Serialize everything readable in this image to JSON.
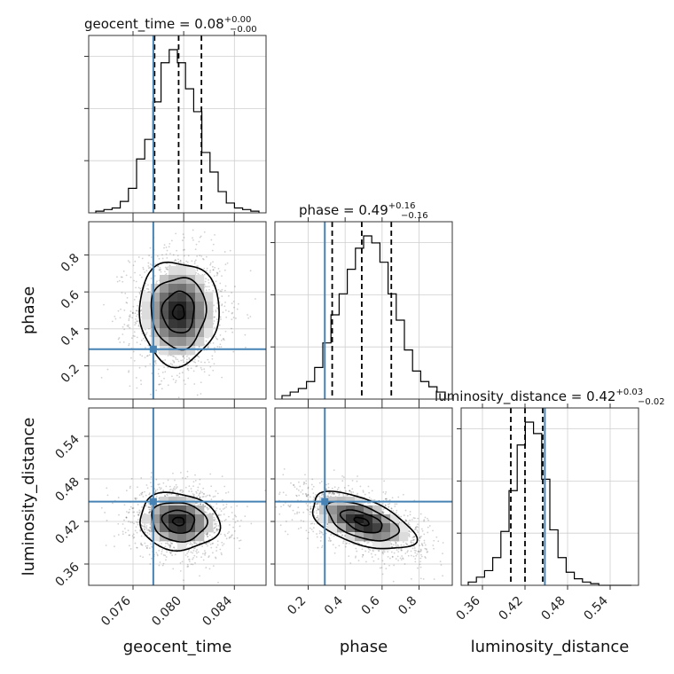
{
  "chart_data": {
    "type": "corner",
    "parameters": [
      {
        "name": "geocent_time",
        "range": [
          0.0725,
          0.0865
        ],
        "ticks": [
          "0.076",
          "0.080",
          "0.084"
        ],
        "tick_values": [
          0.076,
          0.08,
          0.084
        ],
        "truth": 0.0776,
        "median": 0.0796,
        "q_low": 0.0777,
        "q_high": 0.0814,
        "title_value": "0.08",
        "title_plus": "+0.00",
        "title_minus": "−0.00"
      },
      {
        "name": "phase",
        "range": [
          0.02,
          0.98
        ],
        "ticks": [
          "0.2",
          "0.4",
          "0.6",
          "0.8"
        ],
        "tick_values": [
          0.2,
          0.4,
          0.6,
          0.8
        ],
        "truth": 0.29,
        "median": 0.49,
        "q_low": 0.33,
        "q_high": 0.65,
        "title_value": "0.49",
        "title_plus": "+0.16",
        "title_minus": "−0.16"
      },
      {
        "name": "luminosity_distance",
        "range": [
          0.33,
          0.58
        ],
        "ticks": [
          "0.36",
          "0.42",
          "0.48",
          "0.54"
        ],
        "tick_values": [
          0.36,
          0.42,
          0.48,
          0.54
        ],
        "truth": 0.448,
        "median": 0.42,
        "q_low": 0.4,
        "q_high": 0.445,
        "title_value": "0.42",
        "title_plus": "+0.03",
        "title_minus": "−0.02"
      }
    ],
    "histograms": [
      {
        "parameter": "geocent_time",
        "counts": [
          1,
          2,
          3,
          7,
          15,
          33,
          45,
          68,
          92,
          100,
          92,
          76,
          62,
          37,
          25,
          13,
          6,
          3,
          2,
          1
        ]
      },
      {
        "parameter": "phase",
        "counts": [
          2,
          4,
          6,
          10,
          18,
          32,
          48,
          60,
          74,
          86,
          93,
          89,
          78,
          60,
          45,
          28,
          16,
          10,
          7,
          4
        ]
      },
      {
        "parameter": "luminosity_distance",
        "counts": [
          2,
          5,
          9,
          17,
          33,
          58,
          86,
          100,
          93,
          65,
          34,
          17,
          8,
          4,
          2,
          1,
          0,
          0,
          0,
          0
        ]
      }
    ],
    "pairs": [
      {
        "x": "geocent_time",
        "y": "phase",
        "center": [
          0.0796,
          0.49
        ],
        "sigma": [
          0.0018,
          0.16
        ],
        "rho": 0.0
      },
      {
        "x": "geocent_time",
        "y": "luminosity_distance",
        "center": [
          0.0796,
          0.42
        ],
        "sigma": [
          0.0018,
          0.023
        ],
        "rho": -0.1
      },
      {
        "x": "phase",
        "y": "luminosity_distance",
        "center": [
          0.49,
          0.42
        ],
        "sigma": [
          0.16,
          0.023
        ],
        "rho": -0.55
      }
    ],
    "truth_color": "#4682b4",
    "grid": true
  }
}
